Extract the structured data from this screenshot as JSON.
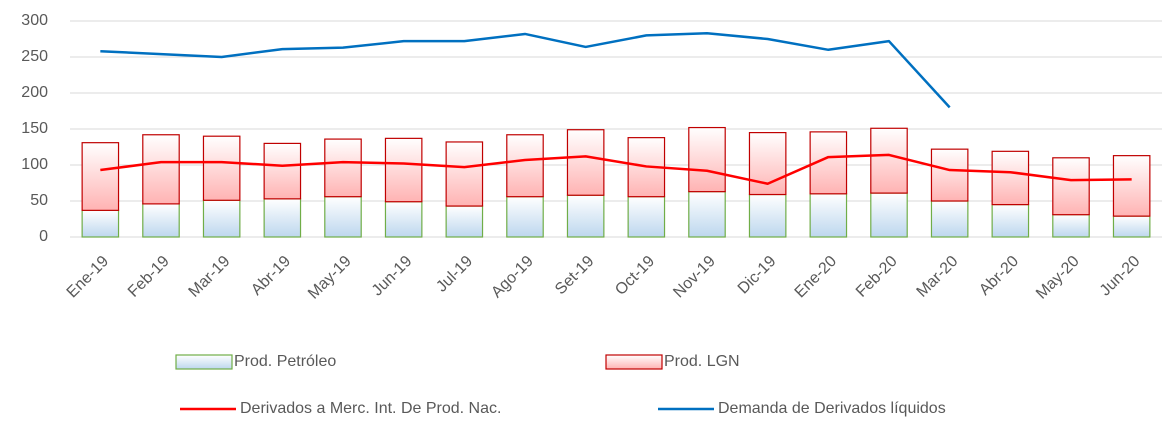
{
  "chart_data": {
    "type": "combo",
    "categories": [
      "Ene-19",
      "Feb-19",
      "Mar-19",
      "Abr-19",
      "May-19",
      "Jun-19",
      "Jul-19",
      "Ago-19",
      "Set-19",
      "Oct-19",
      "Nov-19",
      "Dic-19",
      "Ene-20",
      "Feb-20",
      "Mar-20",
      "Abr-20",
      "May-20",
      "Jun-20"
    ],
    "series": [
      {
        "name": "Prod. Petróleo",
        "type": "bar",
        "color": "#bdd7ee",
        "edgecolor": "#70ad47",
        "values": [
          37,
          46,
          51,
          53,
          56,
          49,
          43,
          56,
          58,
          56,
          63,
          59,
          60,
          61,
          50,
          45,
          31,
          29
        ]
      },
      {
        "name": "Prod. LGN",
        "type": "bar",
        "color": "#ffb3b3",
        "edgecolor": "#c00000",
        "values": [
          94,
          96,
          89,
          77,
          80,
          88,
          89,
          86,
          91,
          82,
          89,
          86,
          86,
          90,
          72,
          74,
          79,
          84
        ]
      },
      {
        "name": "Derivados a Merc. Int. De Prod. Nac.",
        "type": "line",
        "color": "#ff0000",
        "values": [
          93,
          104,
          104,
          99,
          104,
          102,
          97,
          107,
          112,
          98,
          92,
          74,
          111,
          114,
          93,
          90,
          79,
          80
        ]
      },
      {
        "name": "Demanda de Derivados líquidos",
        "type": "line",
        "color": "#0070c0",
        "values": [
          258,
          254,
          250,
          261,
          263,
          272,
          272,
          282,
          264,
          280,
          283,
          275,
          260,
          272,
          180,
          null,
          null,
          null
        ]
      }
    ],
    "ylim": [
      0,
      300
    ],
    "yticks": [
      0,
      50,
      100,
      150,
      200,
      250,
      300
    ],
    "grid": true,
    "legend": "bottom"
  }
}
